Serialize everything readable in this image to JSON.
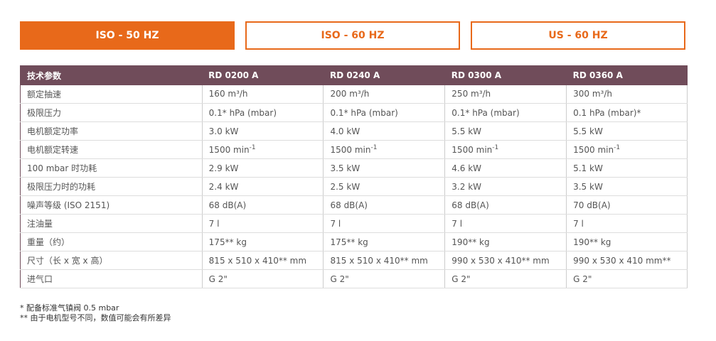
{
  "tabs": [
    "ISO - 50 HZ",
    "ISO - 60 HZ",
    "US - 60 HZ"
  ],
  "active_tab": 0,
  "table": {
    "header": [
      "技术参数",
      "RD 0200 A",
      "RD 0240 A",
      "RD 0300 A",
      "RD 0360 A"
    ],
    "rows": [
      [
        "额定抽速",
        "160 m³/h",
        "200 m³/h",
        "250 m³/h",
        "300 m³/h"
      ],
      [
        "极限压力",
        "0.1* hPa (mbar)",
        "0.1* hPa (mbar)",
        "0.1* hPa (mbar)",
        "0.1 hPa (mbar)*"
      ],
      [
        "电机额定功率",
        "3.0 kW",
        "4.0 kW",
        "5.5 kW",
        "5.5 kW"
      ],
      [
        "电机额定转速",
        {
          "base": "1500 min",
          "sup": "-1"
        },
        {
          "base": "1500 min",
          "sup": "-1"
        },
        {
          "base": "1500 min",
          "sup": "-1"
        },
        {
          "base": "1500 min",
          "sup": "-1"
        }
      ],
      [
        "100 mbar 时功耗",
        "2.9 kW",
        "3.5 kW",
        "4.6 kW",
        "5.1 kW"
      ],
      [
        "极限压力时的功耗",
        "2.4 kW",
        "2.5 kW",
        "3.2 kW",
        "3.5 kW"
      ],
      [
        "噪声等级 (ISO 2151)",
        "68 dB(A)",
        "68 dB(A)",
        "68 dB(A)",
        "70 dB(A)"
      ],
      [
        "注油量",
        "7 l",
        "7 l",
        "7 l",
        "7 l"
      ],
      [
        "重量（约）",
        "175** kg",
        "175** kg",
        "190** kg",
        "190** kg"
      ],
      [
        "尺寸（长 x 宽 x 高）",
        "815 x 510 x 410** mm",
        "815 x 510 x 410** mm",
        "990 x 530 x 410** mm",
        "990 x 530 x 410 mm**"
      ],
      [
        "进气口",
        "G 2\"",
        "G 2\"",
        "G 2\"",
        "G 2\""
      ]
    ]
  },
  "footnotes": [
    "* 配备标准气镇阀 0.5 mbar",
    "** 由于电机型号不同，数值可能会有所差异"
  ]
}
